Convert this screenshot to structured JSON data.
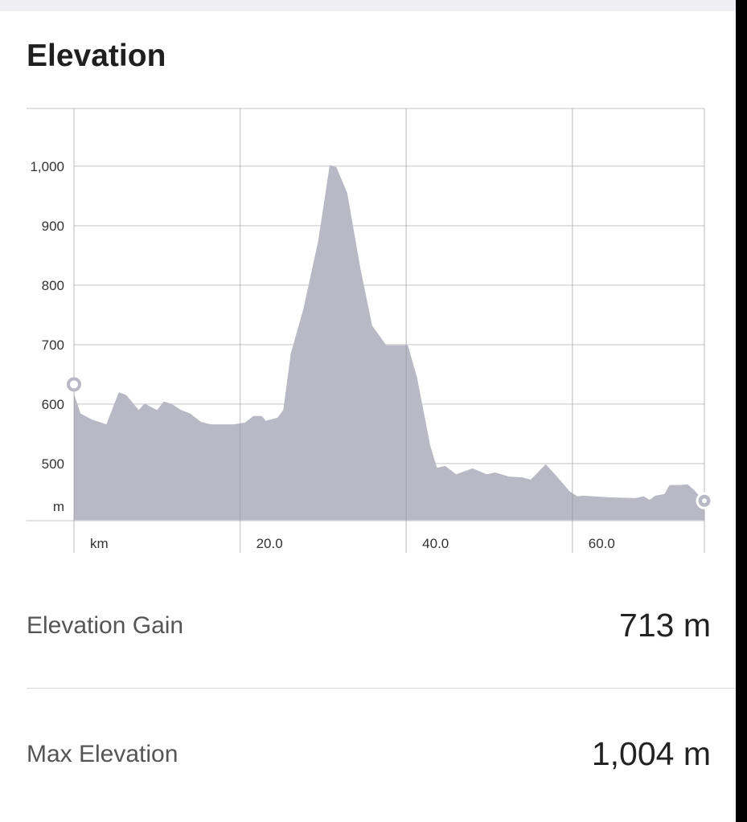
{
  "title": "Elevation",
  "stats": [
    {
      "label": "Elevation Gain",
      "value": "713 m"
    },
    {
      "label": "Max Elevation",
      "value": "1,004 m"
    }
  ],
  "chart_data": {
    "type": "area",
    "title": "",
    "xlabel": "km",
    "ylabel": "m",
    "xlim": [
      0,
      75.9
    ],
    "ylim": [
      404,
      1097
    ],
    "grid": true,
    "x_ticks": [
      {
        "value": 20,
        "label": "20.0"
      },
      {
        "value": 40,
        "label": "40.0"
      },
      {
        "value": 60,
        "label": "60.0"
      }
    ],
    "y_ticks": [
      {
        "value": 500,
        "label": "500"
      },
      {
        "value": 600,
        "label": "600"
      },
      {
        "value": 700,
        "label": "700"
      },
      {
        "value": 800,
        "label": "800"
      },
      {
        "value": 900,
        "label": "900"
      },
      {
        "value": 1000,
        "label": "1,000"
      }
    ],
    "fill_color": "#b9b9c5",
    "x": [
      0,
      0.8,
      2.2,
      3.9,
      5.4,
      6.3,
      7.8,
      8.5,
      10,
      10.8,
      11.7,
      12.9,
      14.0,
      15.3,
      16.5,
      19.2,
      20.6,
      21.6,
      22.6,
      23.1,
      24.5,
      25.2,
      26.1,
      27.6,
      29.4,
      30.8,
      31.6,
      32.9,
      34.5,
      35.9,
      37.6,
      38.6,
      40.2,
      41.3,
      42.9,
      43.7,
      44.7,
      46.0,
      48.0,
      49.7,
      50.7,
      52.4,
      53.9,
      55.0,
      56.8,
      57.9,
      59.7,
      60.6,
      61.3,
      64.7,
      67.6,
      68.6,
      69.3,
      70.0,
      71.1,
      71.7,
      73.0,
      73.9,
      74.7,
      75.9
    ],
    "y": [
      617,
      584,
      574,
      566,
      620,
      615,
      590,
      601,
      590,
      604,
      601,
      590,
      584,
      570,
      566,
      566,
      569,
      580,
      580,
      572,
      577,
      590,
      685,
      759,
      874,
      1002,
      998,
      955,
      827,
      732,
      699,
      699,
      699,
      645,
      530,
      493,
      496,
      482,
      492,
      482,
      485,
      478,
      477,
      473,
      499,
      482,
      453,
      445,
      446,
      443,
      442,
      445,
      439,
      446,
      449,
      464,
      464,
      465,
      455,
      436
    ]
  }
}
